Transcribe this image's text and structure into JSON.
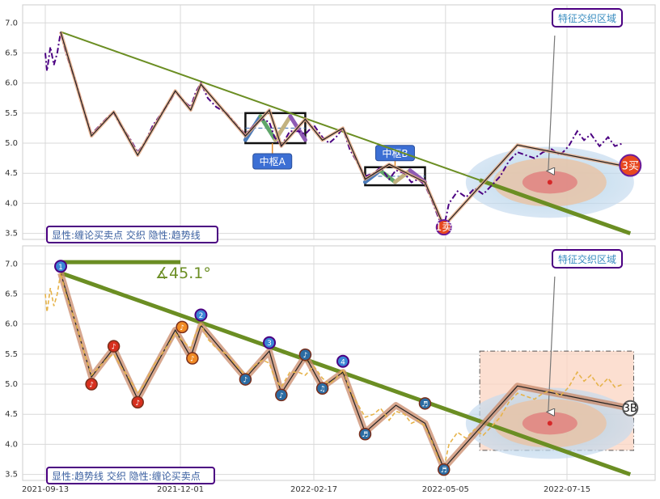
{
  "chart_data": [
    {
      "type": "line",
      "panel": "top",
      "ylim": [
        3.4,
        7.3
      ],
      "yticks": [
        "3.5",
        "4.0",
        "4.5",
        "5.0",
        "5.5",
        "6.0",
        "6.5",
        "7.0"
      ],
      "grid": true,
      "series": [
        {
          "style": "dash-dot",
          "color": "#4b0082",
          "points": [
            [
              "2021-09-13",
              6.5
            ],
            [
              "2021-09-14",
              6.2
            ],
            [
              "2021-09-16",
              6.6
            ],
            [
              "2021-09-18",
              6.3
            ],
            [
              "2021-09-20",
              6.5
            ],
            [
              "2021-09-22",
              6.85
            ],
            [
              "2021-09-25",
              6.5
            ],
            [
              "2021-10-01",
              6.0
            ],
            [
              "2021-10-06",
              5.5
            ],
            [
              "2021-10-10",
              5.15
            ],
            [
              "2021-10-15",
              5.3
            ],
            [
              "2021-10-20",
              5.45
            ],
            [
              "2021-10-23",
              5.5
            ],
            [
              "2021-10-27",
              5.3
            ],
            [
              "2021-11-01",
              5.1
            ],
            [
              "2021-11-06",
              4.85
            ],
            [
              "2021-11-10",
              5.0
            ],
            [
              "2021-11-15",
              5.3
            ],
            [
              "2021-11-20",
              5.5
            ],
            [
              "2021-11-25",
              5.7
            ],
            [
              "2021-11-28",
              5.85
            ],
            [
              "2021-12-03",
              5.7
            ],
            [
              "2021-12-07",
              5.6
            ],
            [
              "2021-12-10",
              5.85
            ],
            [
              "2021-12-13",
              6.0
            ],
            [
              "2021-12-17",
              5.75
            ],
            [
              "2021-12-22",
              5.6
            ],
            [
              "2021-12-28",
              5.5
            ],
            [
              "2022-01-03",
              5.3
            ],
            [
              "2022-01-08",
              5.15
            ],
            [
              "2022-01-13",
              5.3
            ],
            [
              "2022-01-18",
              5.4
            ],
            [
              "2022-01-22",
              5.35
            ],
            [
              "2022-01-25",
              5.1
            ],
            [
              "2022-01-29",
              4.95
            ],
            [
              "2022-02-03",
              5.2
            ],
            [
              "2022-02-08",
              5.2
            ],
            [
              "2022-02-12",
              5.15
            ],
            [
              "2022-02-17",
              5.3
            ],
            [
              "2022-02-22",
              5.1
            ],
            [
              "2022-02-26",
              5.0
            ],
            [
              "2022-03-02",
              5.1
            ],
            [
              "2022-03-06",
              5.25
            ],
            [
              "2022-03-10",
              4.9
            ],
            [
              "2022-03-15",
              4.65
            ],
            [
              "2022-03-19",
              4.45
            ],
            [
              "2022-03-24",
              4.5
            ],
            [
              "2022-03-28",
              4.6
            ],
            [
              "2022-04-02",
              4.4
            ],
            [
              "2022-04-06",
              4.55
            ],
            [
              "2022-04-11",
              4.5
            ],
            [
              "2022-04-15",
              4.35
            ],
            [
              "2022-04-19",
              4.4
            ],
            [
              "2022-04-23",
              4.3
            ],
            [
              "2022-04-27",
              4.05
            ],
            [
              "2022-05-01",
              3.75
            ],
            [
              "2022-05-04",
              3.6
            ],
            [
              "2022-05-07",
              4.0
            ],
            [
              "2022-05-12",
              4.2
            ],
            [
              "2022-05-17",
              4.1
            ],
            [
              "2022-05-22",
              4.25
            ],
            [
              "2022-05-27",
              4.15
            ],
            [
              "2022-06-01",
              4.3
            ],
            [
              "2022-06-06",
              4.45
            ],
            [
              "2022-06-11",
              4.7
            ],
            [
              "2022-06-16",
              4.85
            ],
            [
              "2022-06-21",
              4.8
            ],
            [
              "2022-06-26",
              4.75
            ],
            [
              "2022-07-01",
              4.85
            ],
            [
              "2022-07-06",
              4.9
            ],
            [
              "2022-07-11",
              4.8
            ],
            [
              "2022-07-16",
              4.95
            ],
            [
              "2022-07-21",
              5.2
            ],
            [
              "2022-07-25",
              5.05
            ],
            [
              "2022-07-29",
              5.15
            ],
            [
              "2022-08-03",
              4.95
            ],
            [
              "2022-08-08",
              5.1
            ],
            [
              "2022-08-12",
              4.95
            ],
            [
              "2022-08-17",
              5.0
            ]
          ]
        },
        {
          "style": "solid",
          "color": "#222222",
          "points": [
            [
              "2021-09-22",
              6.85
            ],
            [
              "2021-10-10",
              5.12
            ],
            [
              "2021-10-23",
              5.52
            ],
            [
              "2021-11-06",
              4.8
            ],
            [
              "2021-11-28",
              5.87
            ],
            [
              "2021-12-07",
              5.55
            ],
            [
              "2021-12-13",
              5.98
            ],
            [
              "2022-01-08",
              5.12
            ],
            [
              "2022-01-22",
              5.55
            ],
            [
              "2022-01-29",
              4.95
            ],
            [
              "2022-02-12",
              5.4
            ],
            [
              "2022-02-22",
              5.05
            ],
            [
              "2022-03-06",
              5.25
            ],
            [
              "2022-03-19",
              4.4
            ],
            [
              "2022-04-02",
              4.65
            ],
            [
              "2022-04-23",
              4.35
            ],
            [
              "2022-05-04",
              3.62
            ],
            [
              "2022-06-16",
              4.97
            ],
            [
              "2022-08-21",
              4.6
            ]
          ]
        }
      ],
      "trendlines": [
        {
          "from": [
            "2021-09-22",
            6.85
          ],
          "to": [
            "2022-08-21",
            3.5
          ],
          "color": "#6b8e23"
        }
      ],
      "pivot_boxes": [
        {
          "label": "中枢A",
          "x": [
            "2022-01-08",
            "2022-02-12"
          ],
          "y": [
            5.0,
            5.5
          ]
        },
        {
          "label": "中枢B",
          "x": [
            "2022-03-19",
            "2022-04-23"
          ],
          "y": [
            4.3,
            4.6
          ]
        }
      ],
      "signals": [
        {
          "label": "1卖",
          "x": "2022-05-04",
          "y": 3.6,
          "color": "#e8481f"
        },
        {
          "label": "3买",
          "x": "2022-08-21",
          "y": 4.63,
          "color": "#e8481f"
        }
      ],
      "region_label": "特征交织区域",
      "region_arrow_x": "2022-07-05",
      "region_center": [
        "2022-07-05",
        4.35
      ],
      "legend_text": "显性:缠论买卖点 交织 隐性:趋势线"
    },
    {
      "type": "line",
      "panel": "bottom",
      "ylim": [
        3.4,
        7.3
      ],
      "yticks": [
        "3.5",
        "4.0",
        "4.5",
        "5.0",
        "5.5",
        "6.0",
        "6.5",
        "7.0"
      ],
      "xticks": [
        "2021-09-13",
        "2021-12-01",
        "2022-02-17",
        "2022-05-05",
        "2022-07-15"
      ],
      "grid": true,
      "series": [
        {
          "style": "solid",
          "color": "#222222",
          "points": [
            [
              "2021-09-22",
              6.85
            ],
            [
              "2021-10-10",
              5.12
            ],
            [
              "2021-10-23",
              5.6
            ],
            [
              "2021-11-06",
              4.75
            ],
            [
              "2021-11-28",
              5.9
            ],
            [
              "2021-12-07",
              5.45
            ],
            [
              "2021-12-13",
              5.98
            ],
            [
              "2022-01-08",
              5.1
            ],
            [
              "2022-01-22",
              5.55
            ],
            [
              "2022-01-29",
              4.85
            ],
            [
              "2022-02-12",
              5.47
            ],
            [
              "2022-02-22",
              4.95
            ],
            [
              "2022-03-06",
              5.2
            ],
            [
              "2022-03-19",
              4.2
            ],
            [
              "2022-04-06",
              4.65
            ],
            [
              "2022-04-23",
              4.35
            ],
            [
              "2022-05-04",
              3.6
            ],
            [
              "2022-06-16",
              4.97
            ],
            [
              "2022-08-21",
              4.6
            ]
          ]
        }
      ],
      "trendlines": [
        {
          "from": [
            "2021-09-22",
            6.85
          ],
          "to": [
            "2022-08-21",
            3.5
          ],
          "color": "#6b8e23"
        }
      ],
      "horizontal_segment": {
        "x": [
          "2021-09-22",
          "2021-12-01"
        ],
        "y": 7.03,
        "color": "#6b8e23"
      },
      "angle_label": "∡45.1°",
      "stroke_markers": [
        {
          "label": "1",
          "x": "2021-09-22",
          "y": 6.96
        },
        {
          "label": "2",
          "x": "2021-12-13",
          "y": 6.15
        },
        {
          "label": "3",
          "x": "2022-01-22",
          "y": 5.69
        },
        {
          "label": "4",
          "x": "2022-03-06",
          "y": 5.38
        }
      ],
      "note_markers": [
        {
          "label": "♪",
          "x": "2021-10-10",
          "y": 5.0,
          "color": "#d7301f"
        },
        {
          "label": "♪",
          "x": "2021-10-23",
          "y": 5.63,
          "color": "#d7301f"
        },
        {
          "label": "♪",
          "x": "2021-11-06",
          "y": 4.7,
          "color": "#d7301f"
        },
        {
          "label": "♪",
          "x": "2021-12-02",
          "y": 5.95,
          "color": "#f08a24"
        },
        {
          "label": "♪",
          "x": "2021-12-08",
          "y": 5.43,
          "color": "#f08a24"
        },
        {
          "label": "♪",
          "x": "2022-01-08",
          "y": 5.08,
          "color": "#2b6ca3"
        },
        {
          "label": "♪",
          "x": "2022-01-29",
          "y": 4.82,
          "color": "#2b6ca3"
        },
        {
          "label": "♪",
          "x": "2022-02-12",
          "y": 5.49,
          "color": "#2b6ca3"
        },
        {
          "label": "♫",
          "x": "2022-02-22",
          "y": 4.93,
          "color": "#2b6ca3"
        },
        {
          "label": "♬",
          "x": "2022-03-19",
          "y": 4.17,
          "color": "#2b6ca3"
        },
        {
          "label": "♬",
          "x": "2022-04-23",
          "y": 4.68,
          "color": "#2b6ca3"
        },
        {
          "label": "♬",
          "x": "2022-05-04",
          "y": 3.58,
          "color": "#2b6ca3"
        }
      ],
      "signals": [
        {
          "label": "3B",
          "x": "2022-08-21",
          "y": 4.6,
          "color": "#ffffff"
        }
      ],
      "region_label": "特征交织区域",
      "region_arrow_x": "2022-07-05",
      "region_center": [
        "2022-07-05",
        4.35
      ],
      "region_box": {
        "x": [
          "2022-05-25",
          "2022-08-23"
        ],
        "y": [
          3.9,
          5.55
        ]
      },
      "legend_text": "显性:趋势线 交织 隐性:缠论买卖点"
    }
  ]
}
